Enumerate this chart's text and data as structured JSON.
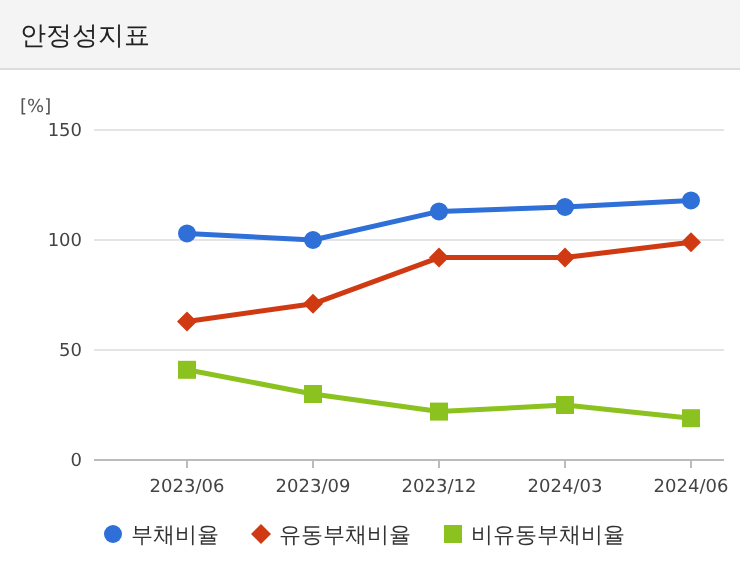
{
  "chart_data": {
    "type": "line",
    "title": "안정성지표",
    "ylabel": "[%]",
    "categories": [
      "2023/06",
      "2023/09",
      "2023/12",
      "2024/03",
      "2024/06"
    ],
    "ylim": [
      0,
      150
    ],
    "yticks": [
      0,
      50,
      100,
      150
    ],
    "grid": "y",
    "legend": "bottom",
    "series": [
      {
        "name": "부채비율",
        "color": "#2e6fd8",
        "marker": "circle",
        "values": [
          103,
          100,
          113,
          115,
          118
        ]
      },
      {
        "name": "유동부채비율",
        "color": "#d03a12",
        "marker": "diamond",
        "values": [
          63,
          71,
          92,
          92,
          99
        ]
      },
      {
        "name": "비유동부채비율",
        "color": "#8cc21f",
        "marker": "square",
        "values": [
          41,
          30,
          22,
          25,
          19
        ]
      }
    ]
  }
}
